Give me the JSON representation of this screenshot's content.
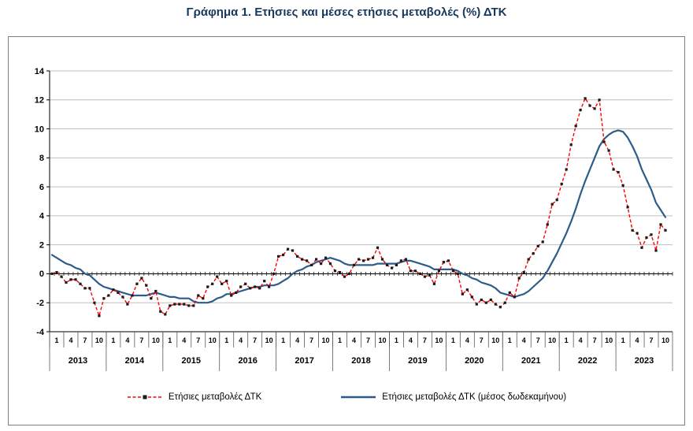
{
  "title": "Γράφημα 1. Ετήσιες και μέσες ετήσιες μεταβολές (%) ΔΤΚ",
  "chart_data": {
    "type": "line",
    "x_unit": "month",
    "years": [
      "2013",
      "2014",
      "2015",
      "2016",
      "2017",
      "2018",
      "2019",
      "2020",
      "2021",
      "2022",
      "2023"
    ],
    "month_tick_labels": [
      "1",
      "4",
      "7",
      "10"
    ],
    "ylim": [
      -4,
      14
    ],
    "ytick_step": 2,
    "grid": true,
    "legend_position": "bottom",
    "series": [
      {
        "name": "Ετήσιες μεταβολές ΔΤΚ",
        "style": "dashed-with-square-markers",
        "color": "#FF0000",
        "marker_color": "#1a1a1a",
        "values": [
          0.0,
          0.1,
          -0.2,
          -0.6,
          -0.4,
          -0.4,
          -0.7,
          -1.0,
          -1.0,
          -2.0,
          -2.9,
          -1.7,
          -1.5,
          -1.1,
          -1.3,
          -1.6,
          -2.1,
          -1.5,
          -0.7,
          -0.3,
          -0.8,
          -1.7,
          -1.2,
          -2.6,
          -2.8,
          -2.2,
          -2.1,
          -2.1,
          -2.1,
          -2.2,
          -2.2,
          -1.5,
          -1.7,
          -0.9,
          -0.7,
          -0.2,
          -0.7,
          -0.5,
          -1.5,
          -1.3,
          -0.9,
          -0.7,
          -1.0,
          -0.9,
          -1.0,
          -0.5,
          -0.9,
          0.0,
          1.2,
          1.3,
          1.7,
          1.6,
          1.2,
          1.0,
          0.9,
          0.6,
          1.0,
          0.7,
          1.1,
          0.7,
          0.2,
          0.1,
          -0.2,
          0.0,
          0.6,
          1.0,
          0.9,
          1.0,
          1.1,
          1.8,
          1.0,
          0.6,
          0.4,
          0.6,
          0.9,
          1.0,
          0.2,
          0.2,
          0.0,
          -0.2,
          -0.1,
          -0.7,
          0.2,
          0.8,
          0.9,
          0.2,
          0.0,
          -1.4,
          -1.1,
          -1.6,
          -2.1,
          -1.8,
          -2.0,
          -1.8,
          -2.1,
          -2.3,
          -2.0,
          -1.3,
          -1.6,
          -0.3,
          0.1,
          1.0,
          1.4,
          1.9,
          2.2,
          3.4,
          4.8,
          5.1,
          6.2,
          7.2,
          8.9,
          10.2,
          11.3,
          12.1,
          11.6,
          11.4,
          12.0,
          9.1,
          8.5,
          7.2,
          7.0,
          6.1,
          4.6,
          3.0,
          2.8,
          1.8,
          2.5,
          2.7,
          1.6,
          3.4,
          3.0
        ]
      },
      {
        "name": "Ετήσιες μεταβολές ΔΤΚ (μέσος δωδεκαμήνου)",
        "style": "solid",
        "color": "#2E5C8A",
        "values": [
          1.3,
          1.1,
          0.9,
          0.7,
          0.6,
          0.4,
          0.3,
          0.0,
          -0.1,
          -0.4,
          -0.7,
          -0.9,
          -1.0,
          -1.1,
          -1.2,
          -1.3,
          -1.4,
          -1.5,
          -1.5,
          -1.5,
          -1.5,
          -1.4,
          -1.3,
          -1.4,
          -1.5,
          -1.6,
          -1.6,
          -1.7,
          -1.7,
          -1.7,
          -1.9,
          -2.0,
          -2.0,
          -2.0,
          -1.9,
          -1.7,
          -1.6,
          -1.4,
          -1.4,
          -1.3,
          -1.2,
          -1.1,
          -1.0,
          -0.9,
          -0.9,
          -0.8,
          -0.8,
          -0.8,
          -0.7,
          -0.5,
          -0.3,
          0.0,
          0.2,
          0.3,
          0.5,
          0.6,
          0.8,
          0.9,
          1.0,
          1.1,
          1.0,
          0.9,
          0.7,
          0.6,
          0.6,
          0.6,
          0.6,
          0.6,
          0.6,
          0.7,
          0.7,
          0.7,
          0.7,
          0.7,
          0.8,
          0.9,
          0.9,
          0.8,
          0.7,
          0.6,
          0.5,
          0.3,
          0.3,
          0.3,
          0.3,
          0.3,
          0.2,
          0.0,
          -0.1,
          -0.3,
          -0.4,
          -0.6,
          -0.7,
          -0.8,
          -1.0,
          -1.3,
          -1.4,
          -1.5,
          -1.6,
          -1.5,
          -1.4,
          -1.2,
          -0.9,
          -0.6,
          -0.3,
          0.2,
          0.8,
          1.4,
          2.1,
          2.8,
          3.6,
          4.5,
          5.5,
          6.4,
          7.2,
          8.0,
          8.8,
          9.3,
          9.6,
          9.8,
          9.9,
          9.8,
          9.4,
          8.8,
          8.1,
          7.2,
          6.5,
          5.8,
          4.9,
          4.4,
          3.9
        ]
      }
    ]
  }
}
